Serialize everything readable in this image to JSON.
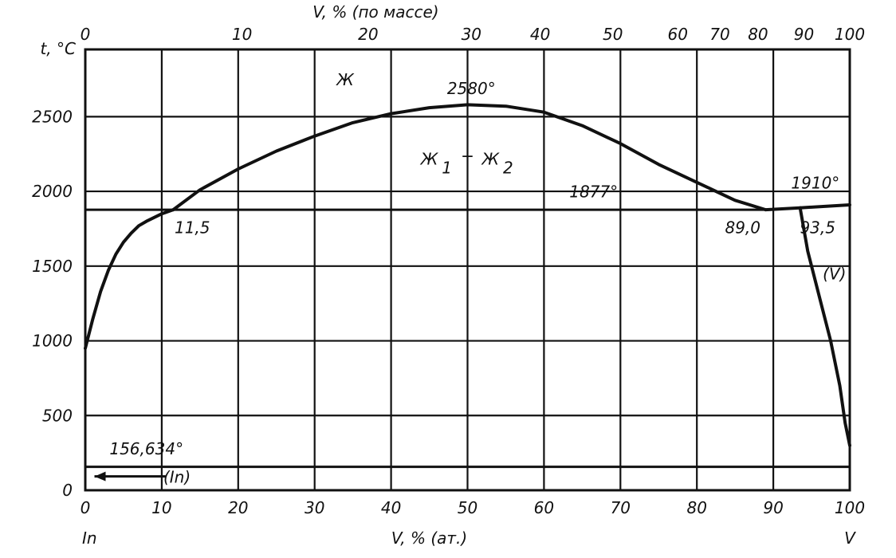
{
  "chart_data": {
    "type": "line",
    "title": "",
    "xlabel_bottom": "V, % (ат.)",
    "xlabel_top": "V, % (по массе)",
    "ylabel": "t, °C",
    "left_component": "In",
    "right_component": "V",
    "xlim": [
      0,
      100
    ],
    "ylim": [
      0,
      2950
    ],
    "x_ticks": [
      "0",
      "10",
      "20",
      "30",
      "40",
      "50",
      "60",
      "70",
      "80",
      "90",
      "100"
    ],
    "y_ticks": [
      "0",
      "500",
      "1000",
      "1500",
      "2000",
      "2500"
    ],
    "top_ticks": [
      {
        "label": "0",
        "at": 0
      },
      {
        "label": "10",
        "at": 20.5
      },
      {
        "label": "20",
        "at": 37
      },
      {
        "label": "30",
        "at": 50.5
      },
      {
        "label": "40",
        "at": 59.5
      },
      {
        "label": "50",
        "at": 69
      },
      {
        "label": "60",
        "at": 77.5
      },
      {
        "label": "70",
        "at": 83
      },
      {
        "label": "80",
        "at": 88
      },
      {
        "label": "90",
        "at": 94
      },
      {
        "label": "100",
        "at": 100
      }
    ],
    "grid": true,
    "series": [
      {
        "values": [
          [
            0,
            950
          ],
          [
            1,
            1150
          ],
          [
            2,
            1330
          ],
          [
            3,
            1470
          ],
          [
            4,
            1580
          ],
          [
            5,
            1660
          ],
          [
            6,
            1720
          ],
          [
            7,
            1770
          ],
          [
            8,
            1800
          ],
          [
            10,
            1850
          ],
          [
            11.5,
            1877
          ]
        ]
      },
      {
        "values": [
          [
            11.5,
            1877
          ],
          [
            15,
            2010
          ],
          [
            20,
            2150
          ],
          [
            25,
            2270
          ],
          [
            30,
            2370
          ],
          [
            35,
            2460
          ],
          [
            40,
            2520
          ],
          [
            45,
            2560
          ],
          [
            50,
            2580
          ],
          [
            55,
            2570
          ],
          [
            60,
            2530
          ],
          [
            65,
            2440
          ],
          [
            70,
            2320
          ],
          [
            75,
            2180
          ],
          [
            80,
            2060
          ],
          [
            85,
            1940
          ],
          [
            89,
            1877
          ]
        ]
      },
      {
        "values": [
          [
            0,
            1877
          ],
          [
            89,
            1877
          ]
        ]
      },
      {
        "values": [
          [
            89,
            1877
          ],
          [
            93.5,
            1890
          ],
          [
            100,
            1910
          ]
        ]
      },
      {
        "values": [
          [
            93.5,
            1890
          ],
          [
            94.5,
            1600
          ],
          [
            96,
            1300
          ],
          [
            97.5,
            1000
          ],
          [
            98.7,
            700
          ],
          [
            99.4,
            450
          ],
          [
            100,
            300
          ]
        ]
      },
      {
        "values": [
          [
            0,
            156.634
          ],
          [
            100,
            156.634
          ]
        ]
      }
    ],
    "annotations": [
      {
        "text": "Ж",
        "x": 34,
        "y": 2710
      },
      {
        "text": "2580°",
        "x": 50.5,
        "y": 2650
      },
      {
        "text": "Ж",
        "x": 45,
        "y": 2180
      },
      {
        "text": "1",
        "x": 47.3,
        "y": 2120
      },
      {
        "text": "+",
        "x": 50,
        "y": 2200
      },
      {
        "text": "Ж",
        "x": 53,
        "y": 2180
      },
      {
        "text": "2",
        "x": 55.3,
        "y": 2120
      },
      {
        "text": "1877°",
        "x": 66.5,
        "y": 1960
      },
      {
        "text": "1910°",
        "x": 95.5,
        "y": 2020
      },
      {
        "text": "11,5",
        "x": 14,
        "y": 1720
      },
      {
        "text": "89,0",
        "x": 86,
        "y": 1720
      },
      {
        "text": "93,5",
        "x": 95.8,
        "y": 1720
      },
      {
        "text": "(V)",
        "x": 98,
        "y": 1410
      },
      {
        "text": "156,634°",
        "x": 8,
        "y": 240
      },
      {
        "text": "(In)",
        "x": 12,
        "y": 50
      }
    ]
  }
}
